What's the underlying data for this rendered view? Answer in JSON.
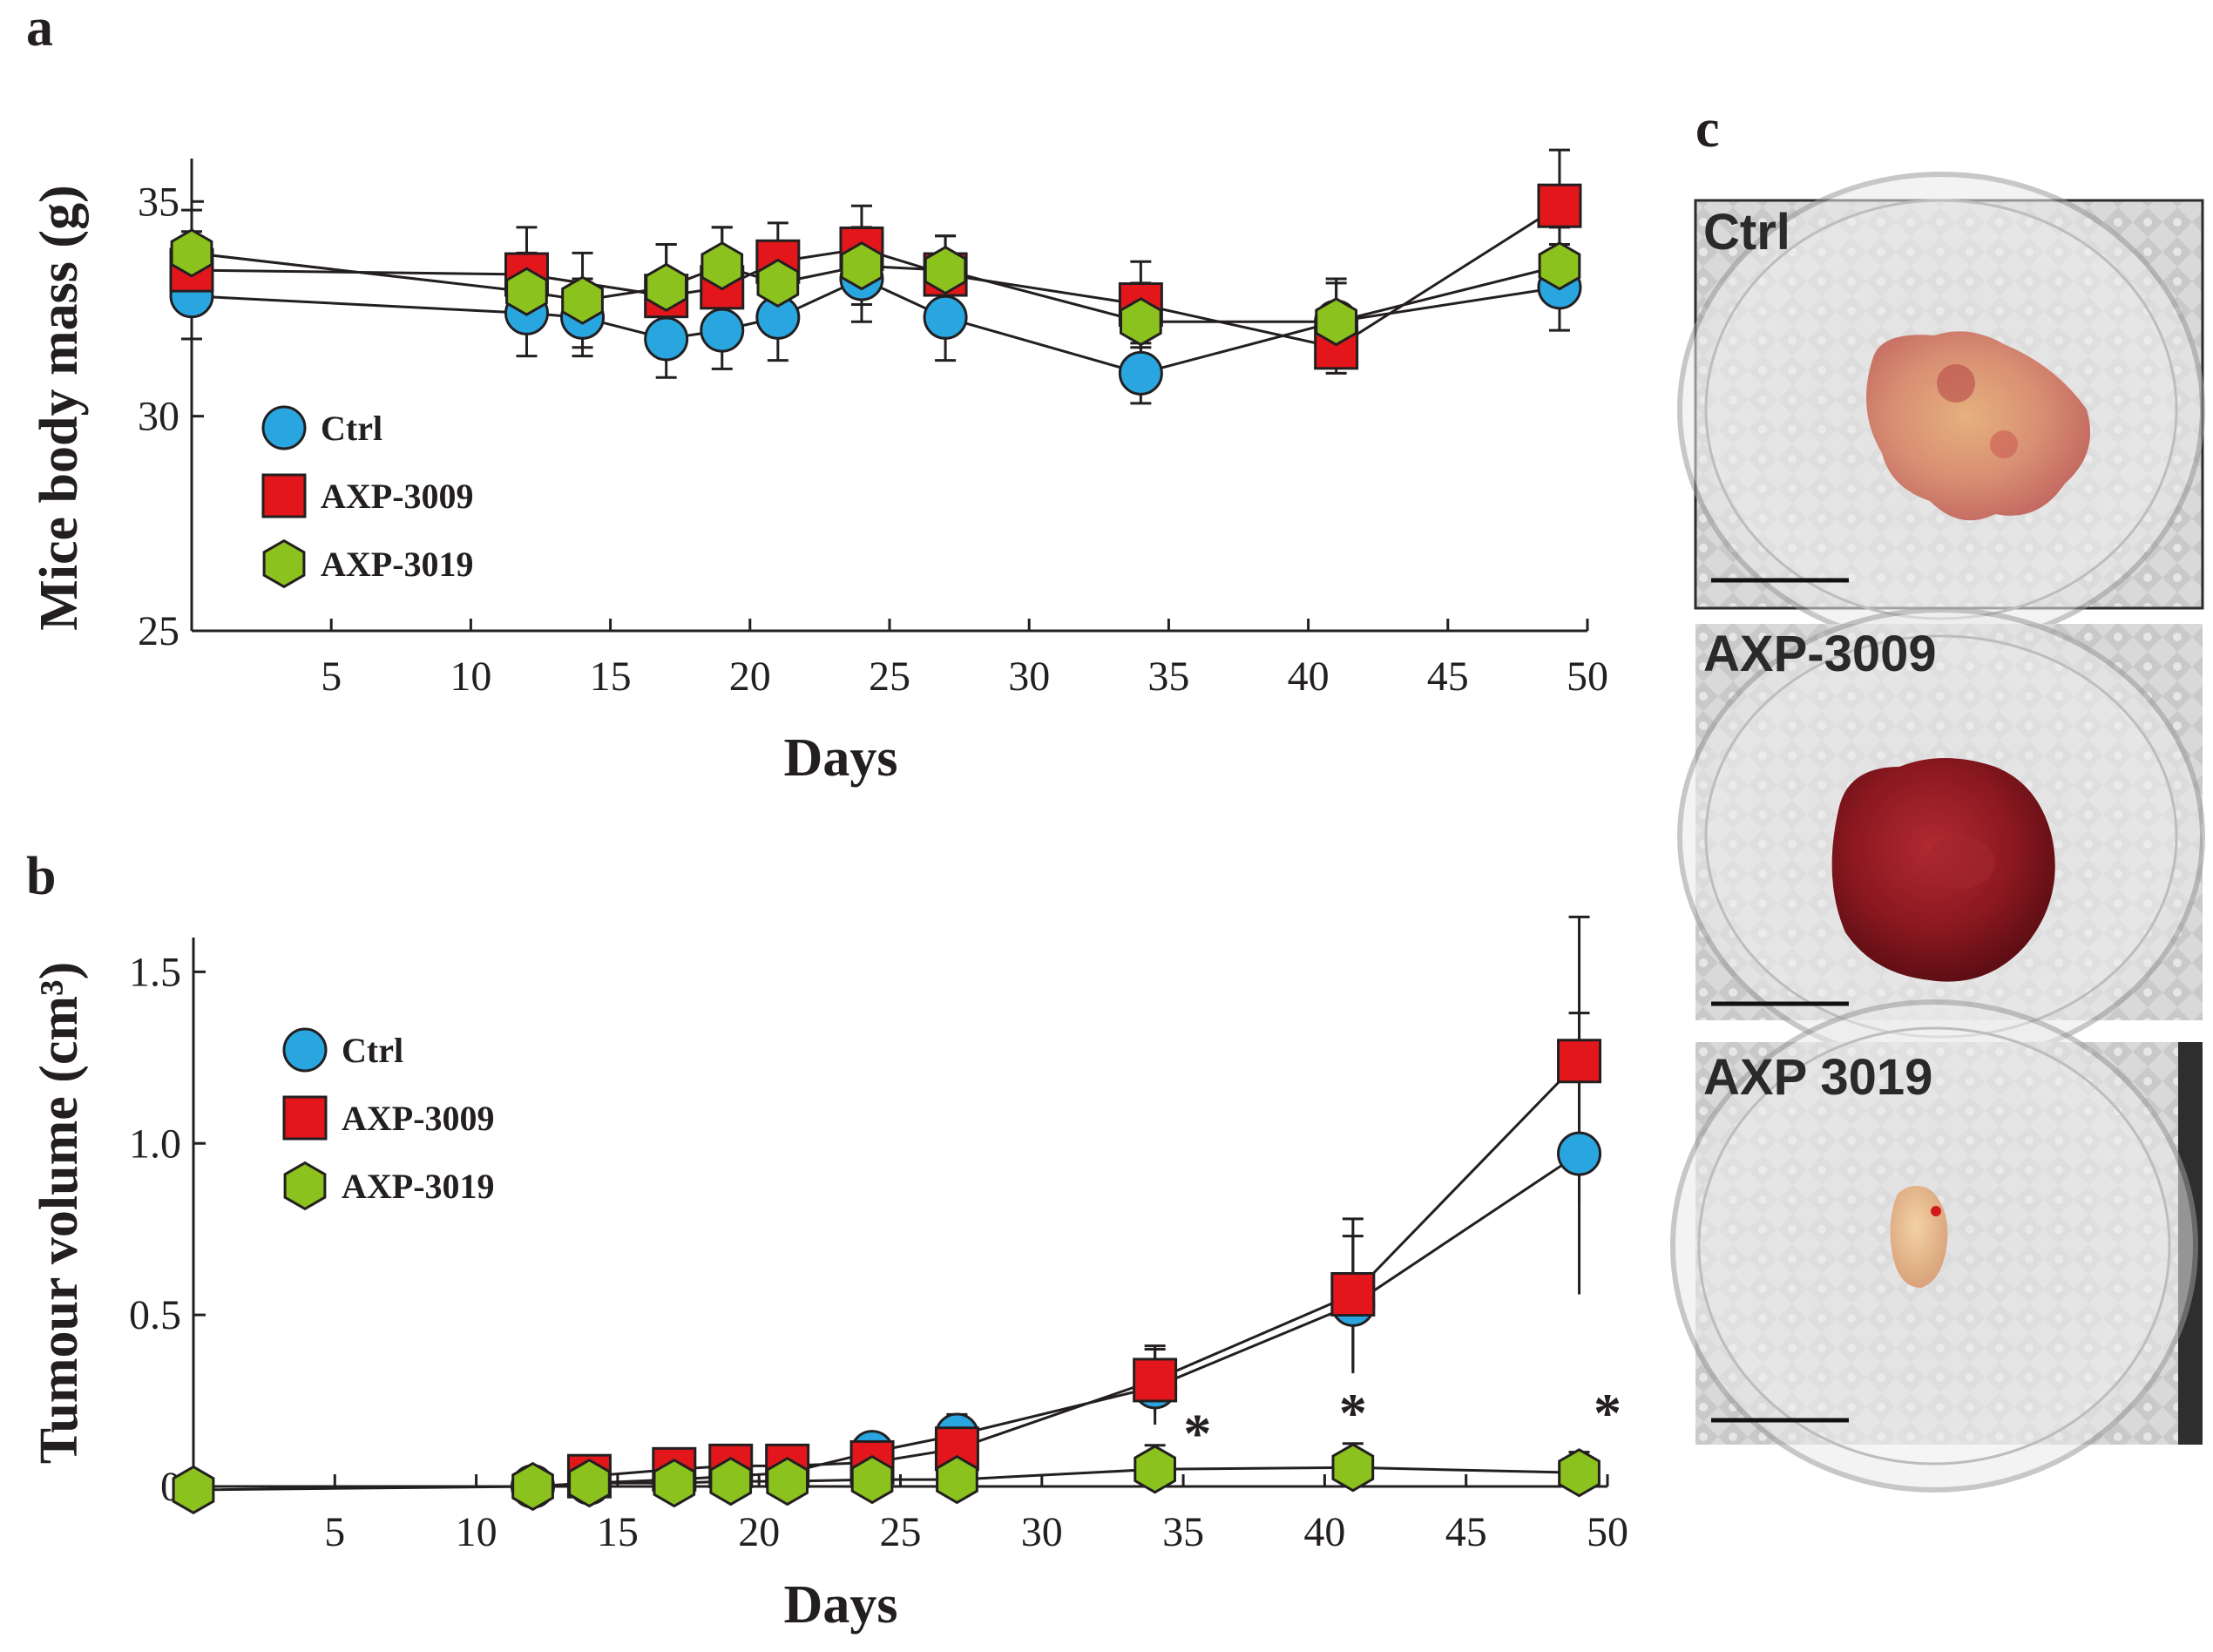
{
  "figure": {
    "panel_a_letter": "a",
    "panel_b_letter": "b",
    "panel_c_letter": "c"
  },
  "colors": {
    "ctrl": "#29a6e0",
    "axp3009": "#e3171b",
    "axp3019": "#8cc21e",
    "line": "#231f20"
  },
  "chart_data": [
    {
      "id": "panel-a",
      "type": "line",
      "ylabel": "Mice body mass (g)",
      "xlabel": "Days",
      "xlim": [
        0,
        50
      ],
      "ylim": [
        25,
        36
      ],
      "xticks": [
        5,
        10,
        15,
        20,
        25,
        30,
        35,
        40,
        45,
        50
      ],
      "yticks": [
        25,
        30,
        35
      ],
      "legend": [
        "Ctrl",
        "AXP-3009",
        "AXP-3019"
      ],
      "series": [
        {
          "name": "Ctrl",
          "marker": "circle",
          "x": [
            0,
            12,
            14,
            17,
            19,
            21,
            24,
            27,
            34,
            41,
            49
          ],
          "y": [
            32.8,
            32.4,
            32.3,
            31.8,
            32.0,
            32.3,
            33.2,
            32.3,
            31.0,
            32.2,
            33.0
          ],
          "err": [
            1.0,
            1.0,
            0.9,
            0.9,
            0.9,
            1.0,
            1.0,
            1.0,
            0.7,
            0.9,
            1.0
          ]
        },
        {
          "name": "AXP-3009",
          "marker": "square",
          "x": [
            0,
            12,
            17,
            19,
            21,
            24,
            27,
            34,
            41,
            49
          ],
          "y": [
            33.4,
            33.3,
            32.8,
            33.0,
            33.6,
            33.9,
            33.3,
            32.6,
            31.6,
            34.9
          ],
          "err": [
            0.9,
            1.1,
            1.2,
            1.4,
            0.9,
            1.0,
            0.9,
            1.0,
            0.6,
            1.3
          ]
        },
        {
          "name": "AXP-3019",
          "marker": "hexagon",
          "x": [
            0,
            12,
            14,
            17,
            19,
            21,
            24,
            27,
            34,
            41,
            49
          ],
          "y": [
            33.8,
            32.9,
            32.7,
            33.0,
            33.5,
            33.1,
            33.5,
            33.4,
            32.2,
            32.2,
            33.5
          ],
          "err": [
            1.0,
            0.9,
            1.1,
            1.0,
            0.9,
            0.9,
            0.9,
            0.8,
            0.9,
            1.0,
            0.9
          ]
        }
      ]
    },
    {
      "id": "panel-b",
      "type": "line",
      "ylabel": "Tumour  volume (cm³)",
      "xlabel": "Days",
      "xlim": [
        0,
        50
      ],
      "ylim": [
        0,
        1.6
      ],
      "xticks": [
        5,
        10,
        15,
        20,
        25,
        30,
        35,
        40,
        45,
        50
      ],
      "yticks": [
        0,
        0.5,
        1.0,
        1.5
      ],
      "ytick_labels": [
        "0",
        "0.5",
        "1.0",
        "1.5"
      ],
      "legend": [
        "Ctrl",
        "AXP-3009",
        "AXP-3019"
      ],
      "annotations": [
        {
          "text": "*",
          "x": 35.5,
          "y": 0.1
        },
        {
          "text": "*",
          "x": 41.0,
          "y": 0.16
        },
        {
          "text": "*",
          "x": 50.0,
          "y": 0.16
        }
      ],
      "series": [
        {
          "name": "Ctrl",
          "marker": "circle",
          "x": [
            12,
            14,
            17,
            19,
            21,
            24,
            27,
            34,
            41,
            49
          ],
          "y": [
            0.0,
            0.01,
            0.02,
            0.03,
            0.04,
            0.1,
            0.15,
            0.29,
            0.53,
            0.97
          ],
          "err": [
            0,
            0,
            0,
            0,
            0,
            0.05,
            0.06,
            0.11,
            0.2,
            0.41
          ]
        },
        {
          "name": "AXP-3009",
          "marker": "square",
          "x": [
            14,
            17,
            19,
            21,
            24,
            27,
            34,
            41,
            49
          ],
          "y": [
            0.03,
            0.05,
            0.06,
            0.06,
            0.07,
            0.11,
            0.31,
            0.56,
            1.24
          ],
          "err": [
            0,
            0,
            0,
            0,
            0,
            0,
            0.1,
            0.22,
            0.42
          ]
        },
        {
          "name": "AXP-3019",
          "marker": "hexagon",
          "x": [
            0,
            12,
            14,
            17,
            19,
            21,
            24,
            27,
            34,
            41,
            49
          ],
          "y": [
            -0.01,
            0.0,
            0.01,
            0.01,
            0.015,
            0.015,
            0.02,
            0.02,
            0.05,
            0.055,
            0.04
          ],
          "err": [
            0,
            0,
            0,
            0,
            0,
            0,
            0,
            0,
            0.07,
            0.07,
            0.06
          ]
        }
      ]
    }
  ],
  "photos": [
    {
      "label": "Ctrl",
      "tumour": "large pale tumour"
    },
    {
      "label": "AXP-3009",
      "tumour": "large red tumour"
    },
    {
      "label": "AXP 3019",
      "tumour": "small tumour"
    }
  ]
}
